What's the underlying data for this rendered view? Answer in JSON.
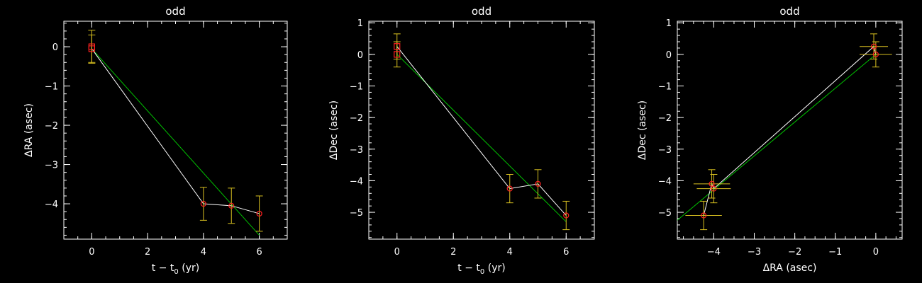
{
  "chart_data": [
    {
      "type": "scatter",
      "title": "odd",
      "xlabel": "t − t",
      "xlabel_sub": "0",
      "xlabel_suffix": " (yr)",
      "ylabel": "ΔRA (asec)",
      "xlim": [
        -1,
        7
      ],
      "ylim": [
        -4.9,
        0.65
      ],
      "xticks": [
        0,
        2,
        4,
        6
      ],
      "yticks": [
        0,
        -1,
        -2,
        -3,
        -4
      ],
      "points": [
        {
          "x": 0,
          "y": 0.0,
          "yerr": 0.42
        },
        {
          "x": 0,
          "y": -0.05,
          "yerr": 0.35
        },
        {
          "x": 4,
          "y": -4.0,
          "yerr": 0.42
        },
        {
          "x": 5,
          "y": -4.05,
          "yerr": 0.45
        },
        {
          "x": 6,
          "y": -4.25,
          "yerr": 0.45
        }
      ],
      "fit_line": [
        [
          0,
          -0.05
        ],
        [
          6,
          -4.8
        ]
      ],
      "colors": {
        "points": "#ff2020",
        "errorbars": "#d8c020",
        "data_line": "#ffffff",
        "fit": "#00c000",
        "axes": "#ffffff"
      }
    },
    {
      "type": "scatter",
      "title": "odd",
      "xlabel": "t − t",
      "xlabel_sub": "0",
      "xlabel_suffix": " (yr)",
      "ylabel": "ΔDec (asec)",
      "xlim": [
        -1,
        7
      ],
      "ylim": [
        -5.85,
        1.05
      ],
      "xticks": [
        0,
        2,
        4,
        6
      ],
      "yticks": [
        1,
        0,
        -1,
        -2,
        -3,
        -4,
        -5
      ],
      "points": [
        {
          "x": 0,
          "y": 0.0,
          "yerr": 0.4
        },
        {
          "x": 0,
          "y": 0.25,
          "yerr": 0.4
        },
        {
          "x": 4,
          "y": -4.25,
          "yerr": 0.45
        },
        {
          "x": 5,
          "y": -4.1,
          "yerr": 0.45
        },
        {
          "x": 6,
          "y": -5.1,
          "yerr": 0.45
        }
      ],
      "fit_line": [
        [
          0,
          0.0
        ],
        [
          6,
          -5.3
        ]
      ],
      "colors": {
        "points": "#ff2020",
        "errorbars": "#d8c020",
        "data_line": "#ffffff",
        "fit": "#00c000",
        "axes": "#ffffff"
      }
    },
    {
      "type": "scatter",
      "title": "odd",
      "xlabel": "ΔRA (asec)",
      "xlabel_sub": "",
      "xlabel_suffix": "",
      "ylabel": "ΔDec (asec)",
      "xlim": [
        -4.9,
        0.65
      ],
      "ylim": [
        -5.85,
        1.05
      ],
      "xticks": [
        -4,
        -3,
        -2,
        -1,
        0
      ],
      "yticks": [
        1,
        0,
        -1,
        -2,
        -3,
        -4,
        -5
      ],
      "points": [
        {
          "x": 0.0,
          "y": 0.0,
          "xerr": 0.4,
          "yerr": 0.4
        },
        {
          "x": -0.05,
          "y": 0.25,
          "xerr": 0.35,
          "yerr": 0.4
        },
        {
          "x": -4.0,
          "y": -4.25,
          "xerr": 0.42,
          "yerr": 0.45
        },
        {
          "x": -4.05,
          "y": -4.1,
          "xerr": 0.45,
          "yerr": 0.45
        },
        {
          "x": -4.25,
          "y": -5.1,
          "xerr": 0.45,
          "yerr": 0.45
        }
      ],
      "fit_line": [
        [
          -4.9,
          -5.25
        ],
        [
          0.0,
          0.0
        ]
      ],
      "colors": {
        "points": "#ff2020",
        "errorbars": "#d8c020",
        "data_line": "#ffffff",
        "fit": "#00c000",
        "axes": "#ffffff"
      }
    }
  ]
}
